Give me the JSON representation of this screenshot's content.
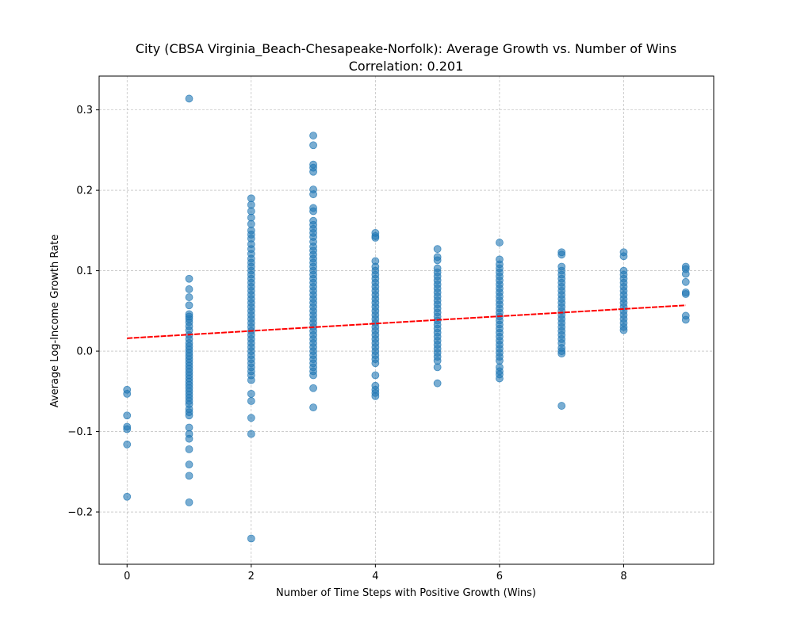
{
  "chart_data": {
    "type": "scatter",
    "title": "City (CBSA Virginia_Beach-Chesapeake-Norfolk): Average Growth vs. Number of Wins",
    "subtitle": "Correlation: 0.201",
    "xlabel": "Number of Time Steps with Positive Growth (Wins)",
    "ylabel": "Average Log-Income Growth Rate",
    "xlim": [
      -0.45,
      9.45
    ],
    "ylim": [
      -0.265,
      0.342
    ],
    "x_ticks": [
      0,
      2,
      4,
      6,
      8
    ],
    "y_ticks": [
      -0.2,
      -0.1,
      0.0,
      0.1,
      0.2,
      0.3
    ],
    "y_tick_labels": [
      "−0.2",
      "−0.1",
      "0.0",
      "0.1",
      "0.2",
      "0.3"
    ],
    "grid": true,
    "point_color": "#1f77b4",
    "trend_color": "#ff0000",
    "trend_line": {
      "x": [
        0,
        9
      ],
      "y": [
        0.016,
        0.057
      ]
    },
    "series": [
      {
        "x": 0,
        "y": [
          -0.048,
          -0.053,
          -0.08,
          -0.094,
          -0.097,
          -0.116,
          -0.181
        ]
      },
      {
        "x": 1,
        "y": [
          0.314,
          0.09,
          0.077,
          0.067,
          0.057,
          0.046,
          0.043,
          0.04,
          0.036,
          0.031,
          0.026,
          0.02,
          0.015,
          0.01,
          0.006,
          0.002,
          -0.002,
          -0.006,
          -0.01,
          -0.014,
          -0.018,
          -0.022,
          -0.026,
          -0.03,
          -0.034,
          -0.038,
          -0.042,
          -0.046,
          -0.05,
          -0.054,
          -0.058,
          -0.062,
          -0.066,
          -0.072,
          -0.076,
          -0.08,
          -0.095,
          -0.103,
          -0.109,
          -0.122,
          -0.141,
          -0.155,
          -0.188
        ]
      },
      {
        "x": 2,
        "y": [
          0.19,
          0.182,
          0.174,
          0.166,
          0.158,
          0.15,
          0.145,
          0.14,
          0.133,
          0.127,
          0.121,
          0.115,
          0.11,
          0.105,
          0.1,
          0.095,
          0.09,
          0.085,
          0.08,
          0.075,
          0.07,
          0.065,
          0.06,
          0.055,
          0.05,
          0.045,
          0.04,
          0.035,
          0.03,
          0.025,
          0.02,
          0.015,
          0.01,
          0.005,
          0.0,
          -0.005,
          -0.01,
          -0.015,
          -0.02,
          -0.025,
          -0.03,
          -0.036,
          -0.053,
          -0.062,
          -0.083,
          -0.103,
          -0.233
        ]
      },
      {
        "x": 3,
        "y": [
          0.268,
          0.256,
          0.232,
          0.228,
          0.223,
          0.201,
          0.195,
          0.178,
          0.174,
          0.162,
          0.157,
          0.152,
          0.147,
          0.142,
          0.136,
          0.13,
          0.125,
          0.12,
          0.115,
          0.11,
          0.105,
          0.1,
          0.095,
          0.09,
          0.085,
          0.08,
          0.075,
          0.07,
          0.065,
          0.06,
          0.055,
          0.05,
          0.045,
          0.04,
          0.035,
          0.03,
          0.025,
          0.02,
          0.015,
          0.01,
          0.005,
          0.0,
          -0.005,
          -0.01,
          -0.015,
          -0.02,
          -0.025,
          -0.03,
          -0.046,
          -0.07
        ]
      },
      {
        "x": 4,
        "y": [
          0.147,
          0.143,
          0.141,
          0.112,
          0.105,
          0.1,
          0.095,
          0.09,
          0.085,
          0.08,
          0.075,
          0.07,
          0.065,
          0.06,
          0.055,
          0.05,
          0.045,
          0.04,
          0.035,
          0.03,
          0.025,
          0.02,
          0.015,
          0.01,
          0.005,
          0.0,
          -0.005,
          -0.01,
          -0.015,
          -0.03,
          -0.043,
          -0.048,
          -0.052,
          -0.056
        ]
      },
      {
        "x": 5,
        "y": [
          0.127,
          0.117,
          0.113,
          0.103,
          0.098,
          0.093,
          0.088,
          0.083,
          0.078,
          0.073,
          0.068,
          0.063,
          0.058,
          0.053,
          0.048,
          0.043,
          0.038,
          0.033,
          0.028,
          0.023,
          0.018,
          0.013,
          0.008,
          0.003,
          -0.002,
          -0.007,
          -0.012,
          -0.02,
          -0.04
        ]
      },
      {
        "x": 6,
        "y": [
          0.135,
          0.114,
          0.108,
          0.103,
          0.098,
          0.093,
          0.088,
          0.083,
          0.078,
          0.073,
          0.068,
          0.063,
          0.058,
          0.053,
          0.048,
          0.043,
          0.038,
          0.033,
          0.028,
          0.023,
          0.018,
          0.013,
          0.008,
          0.003,
          -0.002,
          -0.007,
          -0.012,
          -0.02,
          -0.025,
          -0.029,
          -0.034
        ]
      },
      {
        "x": 7,
        "y": [
          0.123,
          0.12,
          0.105,
          0.1,
          0.095,
          0.09,
          0.085,
          0.08,
          0.075,
          0.07,
          0.065,
          0.06,
          0.055,
          0.05,
          0.045,
          0.04,
          0.035,
          0.03,
          0.025,
          0.02,
          0.015,
          0.01,
          0.004,
          0.0,
          -0.003,
          -0.068
        ]
      },
      {
        "x": 8,
        "y": [
          0.123,
          0.118,
          0.1,
          0.095,
          0.09,
          0.085,
          0.08,
          0.075,
          0.07,
          0.065,
          0.06,
          0.055,
          0.05,
          0.045,
          0.04,
          0.035,
          0.03,
          0.026
        ]
      },
      {
        "x": 9,
        "y": [
          0.105,
          0.102,
          0.096,
          0.086,
          0.073,
          0.071,
          0.044,
          0.039
        ]
      }
    ]
  }
}
